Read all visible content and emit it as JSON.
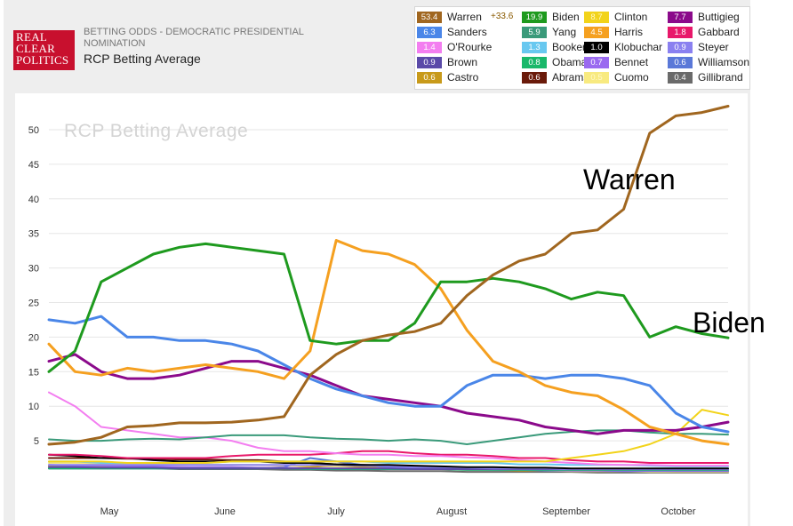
{
  "header": {
    "logo_lines": [
      "REAL",
      "CLEAR",
      "POLITICS"
    ],
    "kicker": "BETTING ODDS - DEMOCRATIC PRESIDENTIAL NOMINATION",
    "title": "RCP Betting Average"
  },
  "legend": [
    {
      "name": "Warren",
      "value": "53.4",
      "change": "+33.6",
      "color": "#a0661f"
    },
    {
      "name": "Biden",
      "value": "19.9",
      "color": "#1e9a1e"
    },
    {
      "name": "Clinton",
      "value": "8.7",
      "color": "#f2d31a"
    },
    {
      "name": "Buttigieg",
      "value": "7.7",
      "color": "#8b0a8b"
    },
    {
      "name": "Sanders",
      "value": "6.3",
      "color": "#4a86e8"
    },
    {
      "name": "Yang",
      "value": "5.9",
      "color": "#3a9a7a"
    },
    {
      "name": "Harris",
      "value": "4.5",
      "color": "#f5a020"
    },
    {
      "name": "Gabbard",
      "value": "1.8",
      "color": "#e8186a"
    },
    {
      "name": "O'Rourke",
      "value": "1.4",
      "color": "#f37ef0"
    },
    {
      "name": "Booker",
      "value": "1.3",
      "color": "#68c8f0"
    },
    {
      "name": "Klobuchar",
      "value": "1.0",
      "color": "#000000"
    },
    {
      "name": "Steyer",
      "value": "0.9",
      "color": "#8a80f0"
    },
    {
      "name": "Brown",
      "value": "0.9",
      "color": "#5a4aa8"
    },
    {
      "name": "Obama",
      "value": "0.8",
      "color": "#19b86a"
    },
    {
      "name": "Bennet",
      "value": "0.7",
      "color": "#9a6af0"
    },
    {
      "name": "Williamson",
      "value": "0.6",
      "color": "#5a78d8"
    },
    {
      "name": "Castro",
      "value": "0.6",
      "color": "#c89a1a"
    },
    {
      "name": "Abrams",
      "value": "0.6",
      "color": "#6a1a0a"
    },
    {
      "name": "Cuomo",
      "value": "0.5",
      "color": "#f8ea80"
    },
    {
      "name": "Gillibrand",
      "value": "0.4",
      "color": "#6a6a6a"
    }
  ],
  "annotations": {
    "warren": "Warren",
    "biden": "Biden"
  },
  "chart_data": {
    "type": "line",
    "title": "RCP Betting Average",
    "xlabel": "",
    "ylabel": "",
    "ylim": [
      0,
      54
    ],
    "yticks": [
      5,
      10,
      15,
      20,
      25,
      30,
      35,
      40,
      45,
      50
    ],
    "grid": true,
    "x_tick_labels": [
      "May",
      "June",
      "July",
      "August",
      "September",
      "October"
    ],
    "x": [
      "Apr 16",
      "Apr 23",
      "Apr 30",
      "May 7",
      "May 14",
      "May 21",
      "May 28",
      "Jun 4",
      "Jun 11",
      "Jun 18",
      "Jun 25",
      "Jul 2",
      "Jul 9",
      "Jul 16",
      "Jul 23",
      "Jul 30",
      "Aug 6",
      "Aug 13",
      "Aug 20",
      "Aug 27",
      "Sep 3",
      "Sep 10",
      "Sep 17",
      "Sep 24",
      "Oct 1",
      "Oct 8",
      "Oct 15"
    ],
    "series": [
      {
        "name": "Warren",
        "values": [
          4.5,
          4.8,
          5.5,
          7.0,
          7.2,
          7.6,
          7.6,
          7.7,
          8.0,
          8.5,
          14.5,
          17.5,
          19.5,
          20.3,
          20.8,
          22.0,
          26.0,
          29.0,
          31.0,
          32.0,
          35.0,
          35.5,
          38.5,
          49.5,
          52.0,
          52.5,
          53.4
        ]
      },
      {
        "name": "Biden",
        "values": [
          15.0,
          18.0,
          28.0,
          30.0,
          32.0,
          33.0,
          33.5,
          33.0,
          32.5,
          32.0,
          19.5,
          19.0,
          19.5,
          19.5,
          22.0,
          28.0,
          28.0,
          28.5,
          28.0,
          27.0,
          25.5,
          26.5,
          26.0,
          20.0,
          21.5,
          20.5,
          19.9
        ]
      },
      {
        "name": "Harris",
        "values": [
          19.0,
          15.0,
          14.5,
          15.5,
          15.0,
          15.5,
          16.0,
          15.5,
          15.0,
          14.0,
          18.0,
          34.0,
          32.5,
          32.0,
          30.5,
          27.0,
          21.0,
          16.5,
          15.0,
          13.0,
          12.0,
          11.5,
          9.5,
          7.0,
          6.0,
          5.0,
          4.5
        ]
      },
      {
        "name": "Sanders",
        "values": [
          22.5,
          22.0,
          23.0,
          20.0,
          20.0,
          19.5,
          19.5,
          19.0,
          18.0,
          16.0,
          14.0,
          12.5,
          11.5,
          10.5,
          10.0,
          10.0,
          13.0,
          14.5,
          14.5,
          14.0,
          14.5,
          14.5,
          14.0,
          13.0,
          9.0,
          7.0,
          6.3
        ]
      },
      {
        "name": "Buttigieg",
        "values": [
          16.5,
          17.5,
          15.0,
          14.0,
          14.0,
          14.5,
          15.5,
          16.5,
          16.5,
          15.5,
          14.5,
          13.0,
          11.5,
          11.0,
          10.5,
          10.0,
          9.0,
          8.5,
          8.0,
          7.0,
          6.5,
          6.0,
          6.5,
          6.5,
          6.5,
          7.0,
          7.7
        ]
      },
      {
        "name": "Clinton",
        "values": [
          2.0,
          2.0,
          2.0,
          1.8,
          1.8,
          1.8,
          1.8,
          2.0,
          2.0,
          2.0,
          2.0,
          2.0,
          2.0,
          2.0,
          2.0,
          2.0,
          2.0,
          2.0,
          2.0,
          2.0,
          2.5,
          3.0,
          3.5,
          4.5,
          6.0,
          9.5,
          8.7
        ]
      },
      {
        "name": "Yang",
        "values": [
          5.2,
          5.0,
          5.0,
          5.2,
          5.3,
          5.2,
          5.5,
          5.8,
          5.8,
          5.8,
          5.5,
          5.3,
          5.2,
          5.0,
          5.2,
          5.0,
          4.5,
          5.0,
          5.5,
          6.0,
          6.3,
          6.5,
          6.5,
          6.2,
          6.0,
          6.0,
          5.9
        ]
      },
      {
        "name": "O'Rourke",
        "values": [
          12.0,
          10.0,
          7.0,
          6.5,
          6.0,
          5.5,
          5.5,
          5.0,
          4.0,
          3.5,
          3.5,
          3.2,
          3.0,
          3.0,
          2.8,
          2.8,
          2.6,
          2.5,
          2.2,
          2.0,
          1.8,
          1.6,
          1.5,
          1.5,
          1.4,
          1.4,
          1.4
        ]
      },
      {
        "name": "Gabbard",
        "values": [
          3.0,
          3.0,
          2.8,
          2.5,
          2.5,
          2.5,
          2.5,
          2.8,
          3.0,
          3.0,
          3.0,
          3.2,
          3.5,
          3.5,
          3.2,
          3.0,
          3.0,
          2.8,
          2.5,
          2.5,
          2.2,
          2.0,
          2.0,
          1.8,
          1.8,
          1.8,
          1.8
        ]
      },
      {
        "name": "Booker",
        "values": [
          2.0,
          2.0,
          1.8,
          1.8,
          1.8,
          1.8,
          1.8,
          2.0,
          2.0,
          2.0,
          2.0,
          2.0,
          2.0,
          1.8,
          1.8,
          1.8,
          1.8,
          1.8,
          1.6,
          1.6,
          1.5,
          1.5,
          1.5,
          1.4,
          1.3,
          1.3,
          1.3
        ]
      },
      {
        "name": "Klobuchar",
        "values": [
          3.0,
          2.8,
          2.5,
          2.5,
          2.2,
          2.0,
          2.0,
          2.0,
          2.0,
          1.8,
          1.8,
          1.6,
          1.5,
          1.5,
          1.4,
          1.3,
          1.2,
          1.2,
          1.1,
          1.1,
          1.0,
          1.0,
          1.0,
          1.0,
          1.0,
          1.0,
          1.0
        ]
      },
      {
        "name": "Steyer",
        "values": [
          1.5,
          1.5,
          1.5,
          1.5,
          1.5,
          1.5,
          1.5,
          1.5,
          1.5,
          1.5,
          1.5,
          1.5,
          1.4,
          1.3,
          1.2,
          1.2,
          1.1,
          1.0,
          1.0,
          1.0,
          0.9,
          0.9,
          0.9,
          0.9,
          0.9,
          0.9,
          0.9
        ]
      },
      {
        "name": "Brown",
        "values": [
          1.2,
          1.2,
          1.1,
          1.1,
          1.1,
          1.0,
          1.0,
          1.0,
          1.0,
          1.0,
          1.0,
          1.0,
          1.0,
          1.0,
          0.9,
          0.9,
          0.9,
          0.9,
          0.9,
          0.9,
          0.9,
          0.9,
          0.9,
          0.9,
          0.9,
          0.9,
          0.9
        ]
      },
      {
        "name": "Obama",
        "values": [
          1.0,
          1.0,
          1.0,
          1.0,
          1.0,
          1.0,
          1.0,
          1.0,
          1.0,
          1.0,
          0.9,
          0.9,
          0.9,
          0.9,
          0.9,
          0.9,
          0.8,
          0.8,
          0.8,
          0.8,
          0.8,
          0.8,
          0.8,
          0.8,
          0.8,
          0.8,
          0.8
        ]
      },
      {
        "name": "Bennet",
        "values": [
          1.5,
          1.4,
          1.4,
          1.3,
          1.3,
          1.2,
          1.2,
          1.2,
          1.1,
          1.1,
          1.0,
          1.0,
          1.0,
          0.9,
          0.9,
          0.9,
          0.8,
          0.8,
          0.8,
          0.8,
          0.7,
          0.7,
          0.7,
          0.7,
          0.7,
          0.7,
          0.7
        ]
      },
      {
        "name": "Williamson",
        "values": [
          1.0,
          1.0,
          1.0,
          1.0,
          1.0,
          1.0,
          1.0,
          1.0,
          1.0,
          1.2,
          2.5,
          2.0,
          1.5,
          1.2,
          1.0,
          1.0,
          0.9,
          0.8,
          0.8,
          0.7,
          0.7,
          0.7,
          0.6,
          0.6,
          0.6,
          0.6,
          0.6
        ]
      },
      {
        "name": "Castro",
        "values": [
          1.3,
          1.3,
          1.2,
          1.2,
          1.2,
          1.2,
          1.1,
          1.1,
          1.0,
          1.0,
          1.2,
          1.5,
          1.2,
          1.0,
          0.9,
          0.9,
          0.8,
          0.8,
          0.7,
          0.7,
          0.7,
          0.7,
          0.6,
          0.6,
          0.6,
          0.6,
          0.6
        ]
      },
      {
        "name": "Abrams",
        "values": [
          2.5,
          2.5,
          2.5,
          2.4,
          2.4,
          2.3,
          2.3,
          2.2,
          2.2,
          2.0,
          1.8,
          1.6,
          1.5,
          1.4,
          1.3,
          1.2,
          1.1,
          1.0,
          1.0,
          0.9,
          0.8,
          0.8,
          0.7,
          0.7,
          0.6,
          0.6,
          0.6
        ]
      },
      {
        "name": "Cuomo",
        "values": [
          1.8,
          1.8,
          1.7,
          1.7,
          1.6,
          1.6,
          1.5,
          1.5,
          1.5,
          1.4,
          1.4,
          1.3,
          1.2,
          1.1,
          1.0,
          1.0,
          0.9,
          0.8,
          0.8,
          0.7,
          0.6,
          0.6,
          0.6,
          0.5,
          0.5,
          0.5,
          0.5
        ]
      },
      {
        "name": "Gillibrand",
        "values": [
          1.0,
          1.0,
          1.0,
          1.0,
          1.0,
          0.9,
          0.9,
          0.9,
          0.9,
          0.8,
          0.8,
          0.7,
          0.7,
          0.6,
          0.6,
          0.6,
          0.5,
          0.5,
          0.5,
          0.5,
          0.5,
          0.4,
          0.4,
          0.4,
          0.4,
          0.4,
          0.4
        ]
      }
    ]
  }
}
